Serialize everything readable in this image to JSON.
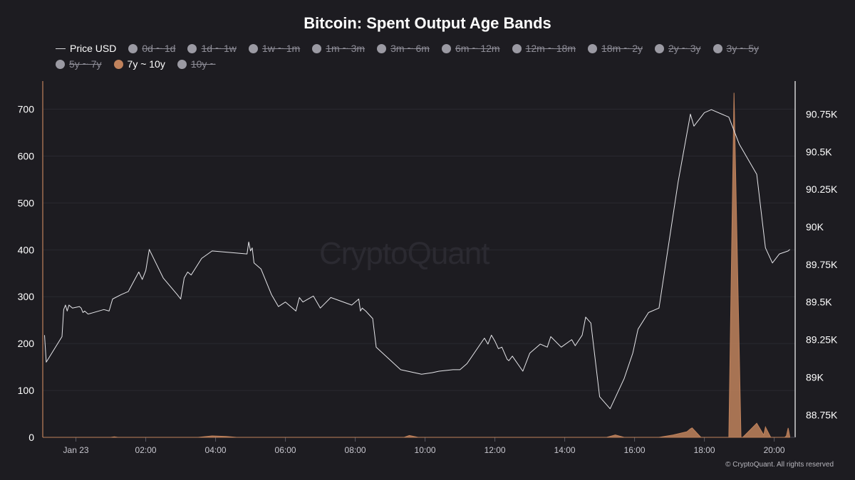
{
  "title": "Bitcoin: Spent Output Age Bands",
  "watermark": "CryptoQuant",
  "footer": "© CryptoQuant. All rights reserved",
  "colors": {
    "background": "#1d1c21",
    "price_line": "#e6e6ea",
    "band_7y_10y": "#c0825c",
    "inactive_dot": "#9b9aa3",
    "grid": "#2a2930"
  },
  "legend": [
    {
      "label": "Price USD",
      "active": true,
      "symbol": "line"
    },
    {
      "label": "0d ~ 1d",
      "active": false,
      "symbol": "dot"
    },
    {
      "label": "1d ~ 1w",
      "active": false,
      "symbol": "dot"
    },
    {
      "label": "1w ~ 1m",
      "active": false,
      "symbol": "dot"
    },
    {
      "label": "1m ~ 3m",
      "active": false,
      "symbol": "dot"
    },
    {
      "label": "3m ~ 6m",
      "active": false,
      "symbol": "dot"
    },
    {
      "label": "6m ~ 12m",
      "active": false,
      "symbol": "dot"
    },
    {
      "label": "12m ~ 18m",
      "active": false,
      "symbol": "dot"
    },
    {
      "label": "18m ~ 2y",
      "active": false,
      "symbol": "dot"
    },
    {
      "label": "2y ~ 3y",
      "active": false,
      "symbol": "dot"
    },
    {
      "label": "3y ~ 5y",
      "active": false,
      "symbol": "dot"
    },
    {
      "label": "5y ~ 7y",
      "active": false,
      "symbol": "dot"
    },
    {
      "label": "7y ~ 10y",
      "active": true,
      "symbol": "dot"
    },
    {
      "label": "10y ~",
      "active": false,
      "symbol": "dot"
    }
  ],
  "chart_data": {
    "type": "area",
    "title": "Bitcoin: Spent Output Age Bands",
    "grid": true,
    "legend_position": "top",
    "x_ticks": [
      "Jan 23",
      "02:00",
      "04:00",
      "06:00",
      "08:00",
      "10:00",
      "12:00",
      "14:00",
      "16:00",
      "18:00",
      "20:00"
    ],
    "x_range_hours": [
      -0.95,
      20.6
    ],
    "y_left": {
      "ticks": [
        "0",
        "100",
        "200",
        "300",
        "400",
        "500",
        "600",
        "700"
      ],
      "range": [
        0,
        760
      ]
    },
    "y_right": {
      "ticks": [
        "88.75K",
        "89K",
        "89.25K",
        "89.5K",
        "89.75K",
        "90K",
        "90.25K",
        "90.5K",
        "90.75K"
      ],
      "range": [
        88.6,
        90.97
      ],
      "unit": "K USD"
    },
    "series": [
      {
        "name": "Price USD",
        "axis": "right",
        "style": "line",
        "x": [
          -0.9,
          -0.85,
          -0.4,
          -0.35,
          -0.3,
          -0.25,
          -0.2,
          -0.1,
          0.1,
          0.15,
          0.2,
          0.25,
          0.35,
          0.8,
          0.95,
          1.05,
          1.3,
          1.5,
          1.8,
          1.9,
          2.0,
          2.1,
          2.5,
          2.9,
          3.0,
          3.1,
          3.2,
          3.3,
          3.6,
          3.9,
          4.9,
          4.95,
          5.0,
          5.05,
          5.1,
          5.3,
          5.6,
          5.8,
          6.0,
          6.3,
          6.4,
          6.5,
          6.8,
          7.0,
          7.3,
          7.9,
          8.1,
          8.15,
          8.2,
          8.3,
          8.5,
          8.6,
          9.3,
          9.9,
          10.2,
          10.4,
          10.8,
          11.0,
          11.2,
          11.7,
          11.8,
          11.9,
          12.0,
          12.1,
          12.2,
          12.35,
          12.4,
          12.5,
          12.8,
          13.0,
          13.3,
          13.5,
          13.6,
          13.9,
          14.2,
          14.3,
          14.5,
          14.6,
          14.75,
          15.0,
          15.3,
          15.7,
          15.95,
          16.1,
          16.4,
          16.7,
          17.0,
          17.25,
          17.6,
          17.7,
          18.0,
          18.2,
          18.7,
          19.0,
          19.5,
          19.75,
          19.95,
          20.15,
          20.4,
          20.45
        ],
        "y": [
          89.28,
          89.1,
          89.27,
          89.45,
          89.48,
          89.44,
          89.48,
          89.46,
          89.47,
          89.46,
          89.43,
          89.44,
          89.42,
          89.45,
          89.44,
          89.52,
          89.55,
          89.57,
          89.7,
          89.65,
          89.71,
          89.85,
          89.66,
          89.55,
          89.52,
          89.66,
          89.7,
          89.68,
          89.79,
          89.84,
          89.82,
          89.9,
          89.84,
          89.86,
          89.76,
          89.72,
          89.55,
          89.47,
          89.5,
          89.44,
          89.53,
          89.5,
          89.54,
          89.46,
          89.53,
          89.48,
          89.52,
          89.44,
          89.46,
          89.44,
          89.39,
          89.2,
          89.05,
          89.02,
          89.03,
          89.04,
          89.05,
          89.05,
          89.09,
          89.26,
          89.22,
          89.28,
          89.24,
          89.19,
          89.2,
          89.12,
          89.11,
          89.14,
          89.04,
          89.16,
          89.22,
          89.2,
          89.27,
          89.2,
          89.25,
          89.21,
          89.28,
          89.4,
          89.36,
          88.87,
          88.79,
          88.99,
          89.16,
          89.32,
          89.43,
          89.46,
          89.92,
          90.3,
          90.75,
          90.67,
          90.76,
          90.78,
          90.73,
          90.55,
          90.35,
          89.86,
          89.76,
          89.82,
          89.84,
          89.85
        ]
      },
      {
        "name": "7y ~ 10y",
        "axis": "left",
        "style": "area",
        "x": [
          -0.95,
          1.0,
          1.1,
          1.2,
          3.5,
          3.9,
          4.3,
          4.6,
          9.4,
          9.55,
          9.8,
          13.5,
          15.2,
          15.45,
          15.7,
          16.7,
          17.1,
          17.5,
          17.6,
          17.65,
          17.9,
          18.7,
          18.85,
          19.05,
          19.1,
          19.3,
          19.5,
          19.7,
          19.75,
          19.9,
          20.0,
          20.3,
          20.35,
          20.4,
          20.45
        ],
        "y": [
          0,
          0,
          1,
          0,
          0,
          3,
          2,
          0,
          0,
          4,
          0,
          0,
          0,
          5,
          0,
          0,
          5,
          12,
          18,
          20,
          0,
          0,
          735,
          0,
          0,
          15,
          30,
          5,
          22,
          0,
          0,
          0,
          3,
          20,
          0
        ]
      }
    ]
  }
}
